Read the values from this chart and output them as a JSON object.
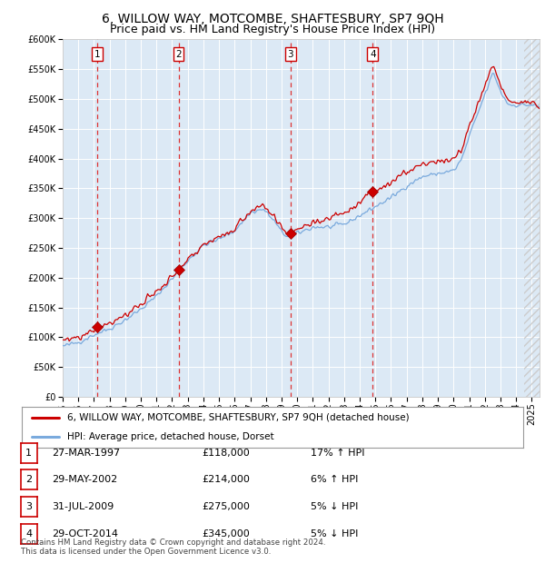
{
  "title": "6, WILLOW WAY, MOTCOMBE, SHAFTESBURY, SP7 9QH",
  "subtitle": "Price paid vs. HM Land Registry's House Price Index (HPI)",
  "ylim": [
    0,
    600000
  ],
  "yticks": [
    0,
    50000,
    100000,
    150000,
    200000,
    250000,
    300000,
    350000,
    400000,
    450000,
    500000,
    550000,
    600000
  ],
  "xlim_start": 1995.0,
  "xlim_end": 2025.5,
  "bg_color": "#dce9f5",
  "line_color_red": "#cc0000",
  "line_color_blue": "#7aaadd",
  "sale_dates": [
    1997.23,
    2002.41,
    2009.58,
    2014.83
  ],
  "sale_prices": [
    118000,
    214000,
    275000,
    345000
  ],
  "vline_dates": [
    1997.23,
    2002.41,
    2009.58,
    2014.83
  ],
  "legend_label_red": "6, WILLOW WAY, MOTCOMBE, SHAFTESBURY, SP7 9QH (detached house)",
  "legend_label_blue": "HPI: Average price, detached house, Dorset",
  "table_rows": [
    {
      "num": "1",
      "date": "27-MAR-1997",
      "price": "£118,000",
      "pct": "17% ↑ HPI"
    },
    {
      "num": "2",
      "date": "29-MAY-2002",
      "price": "£214,000",
      "pct": "6% ↑ HPI"
    },
    {
      "num": "3",
      "date": "31-JUL-2009",
      "price": "£275,000",
      "pct": "5% ↓ HPI"
    },
    {
      "num": "4",
      "date": "29-OCT-2014",
      "price": "£345,000",
      "pct": "5% ↓ HPI"
    }
  ],
  "footnote": "Contains HM Land Registry data © Crown copyright and database right 2024.\nThis data is licensed under the Open Government Licence v3.0.",
  "title_fontsize": 10,
  "subtitle_fontsize": 9,
  "tick_fontsize": 7,
  "label_fontsize": 8
}
